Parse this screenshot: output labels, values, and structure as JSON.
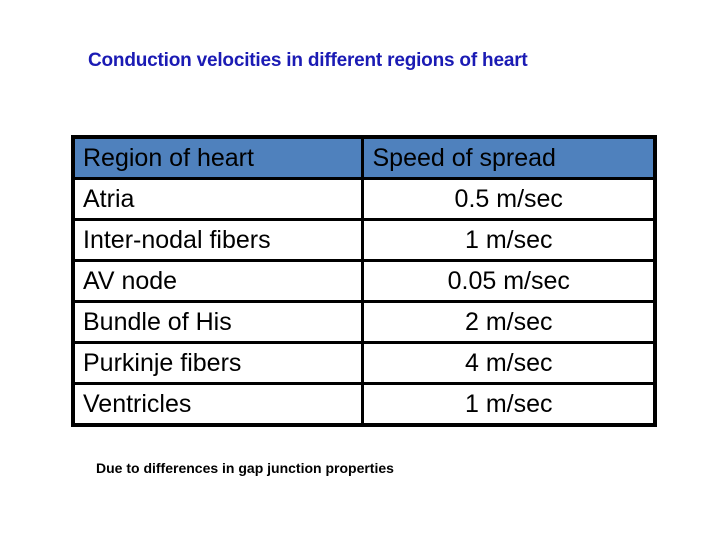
{
  "slide": {
    "title": "Conduction velocities in different regions of heart",
    "caption": "Due to differences in gap junction properties"
  },
  "table": {
    "headers": {
      "region": "Region of heart",
      "speed": "Speed of spread"
    },
    "rows": [
      {
        "region": "Atria",
        "speed": "0.5 m/sec"
      },
      {
        "region": "Inter-nodal fibers",
        "speed": "1 m/sec"
      },
      {
        "region": "AV node",
        "speed": "0.05 m/sec"
      },
      {
        "region": "Bundle of His",
        "speed": "2 m/sec"
      },
      {
        "region": "Purkinje fibers",
        "speed": "4 m/sec"
      },
      {
        "region": "Ventricles",
        "speed": "1 m/sec"
      }
    ]
  },
  "chart_data": {
    "type": "table",
    "title": "Conduction velocities in different regions of heart",
    "columns": [
      "Region of heart",
      "Speed of spread"
    ],
    "rows": [
      [
        "Atria",
        "0.5 m/sec"
      ],
      [
        "Inter-nodal fibers",
        "1 m/sec"
      ],
      [
        "AV node",
        "0.05 m/sec"
      ],
      [
        "Bundle of His",
        "2 m/sec"
      ],
      [
        "Purkinje fibers",
        "4 m/sec"
      ],
      [
        "Ventricles",
        "1 m/sec"
      ]
    ],
    "speed_values_m_per_sec": [
      0.5,
      1,
      0.05,
      2,
      4,
      1
    ],
    "annotation": "Due to differences in gap junction properties"
  },
  "colors": {
    "background": "#ffffff",
    "title_text": "#1b1bb4",
    "header_fill": "#4f81bd",
    "header_text": "#2525d5",
    "body_text": "#000000",
    "border": "#000000"
  }
}
